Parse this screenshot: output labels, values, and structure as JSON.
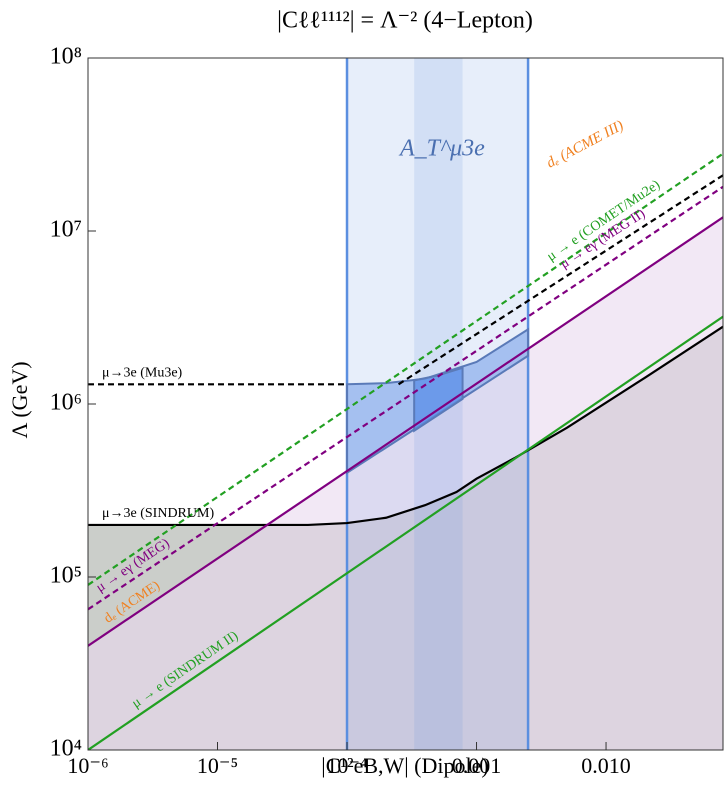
{
  "chart_data": {
    "type": "line",
    "title": "|Cℓℓ¹¹¹²| = Λ⁻²    (4−Lepton)",
    "x_label": "|C¹²eB,W|   (Dipole)",
    "y_label": "Λ (GeV)",
    "xscale": "log",
    "yscale": "log",
    "xlim": [
      1e-06,
      0.08
    ],
    "ylim": [
      10000,
      100000000
    ],
    "xticks": [
      {
        "value": 1e-06,
        "label": "10⁻⁶"
      },
      {
        "value": 1e-05,
        "label": "10⁻⁵"
      },
      {
        "value": 0.0001,
        "label": "10⁻⁴"
      },
      0.001,
      {
        "value": 0.01,
        "label": "0.010"
      }
    ],
    "yticks": [
      {
        "value": 10000,
        "label": "10⁴"
      },
      {
        "value": 100000,
        "label": "10⁵"
      },
      {
        "value": 1000000,
        "label": "10⁶"
      },
      {
        "value": 10000000,
        "label": "10⁷"
      },
      {
        "value": 100000000,
        "label": "10⁸"
      }
    ],
    "series": [
      {
        "name": "μ→3e (Mu3e)",
        "color": "#000000",
        "dashed": true,
        "x": [
          1e-06,
          0.0001
        ],
        "y": [
          1300000,
          1300000
        ]
      },
      {
        "name": "μ→3e (SINDRUM)",
        "color": "#000000",
        "dashed": false,
        "fill": "#a9ada6",
        "x": [
          1e-06,
          5e-05,
          0.0001,
          0.0002,
          0.0004,
          0.0007,
          0.001,
          0.002,
          0.005,
          0.02,
          0.08
        ],
        "y": [
          200000,
          200000,
          205000,
          220000,
          260000,
          310000,
          370000,
          490000,
          730000,
          1420000,
          2800000
        ]
      },
      {
        "name": "μ → e (SINDRUM II)",
        "color": "#22a022",
        "dashed": false,
        "x": [
          1e-06,
          0.08
        ],
        "y": [
          10000,
          3200000
        ]
      },
      {
        "name": "dₑ (ACME)",
        "color": "#800080",
        "label_color": "#f08020",
        "dashed": false,
        "fill": "#ead8ee",
        "x": [
          1e-06,
          0.08
        ],
        "y": [
          40000,
          12000000
        ]
      },
      {
        "name": "μ → eγ (MEG)",
        "color": "#800080",
        "dashed": true,
        "x": [
          1e-06,
          0.08
        ],
        "y": [
          65000,
          18000000
        ]
      },
      {
        "name": "μ → e (COMET/Mu2e)",
        "color": "#22a022",
        "dashed": true,
        "x": [
          1e-06,
          0.08
        ],
        "y": [
          90000,
          28000000
        ]
      },
      {
        "name": "μ → eγ (MEG II)",
        "color": "#000000",
        "label_color": "#800080",
        "dashed": true,
        "x": [
          0.00025,
          0.08
        ],
        "y": [
          1300000,
          21000000
        ]
      }
    ],
    "bands": [
      {
        "color": "#5b8fe0",
        "x": [
          0.0001,
          0.0025
        ]
      },
      {
        "color": "#5b8fe0",
        "x": [
          0.00033,
          0.00078
        ]
      }
    ],
    "regions": [
      {
        "color": "#8fb0ec",
        "x": [
          0.0001,
          0.0002,
          0.0004,
          0.001,
          0.0025,
          0.0025,
          0.0001
        ],
        "y": [
          1300000,
          1320000,
          1400000,
          1750000,
          2700000,
          1900000,
          400000
        ]
      },
      {
        "color": "#5b8fe8",
        "x": [
          0.00033,
          0.0005,
          0.00078,
          0.00078,
          0.00033
        ],
        "y": [
          1370000,
          1460000,
          1620000,
          1070000,
          700000
        ]
      }
    ],
    "annotations": [
      {
        "text": "dₑ (ACME III)",
        "color": "#f08020"
      },
      {
        "text": "A_T^μ3e",
        "color": "#4a6fb0"
      }
    ]
  }
}
